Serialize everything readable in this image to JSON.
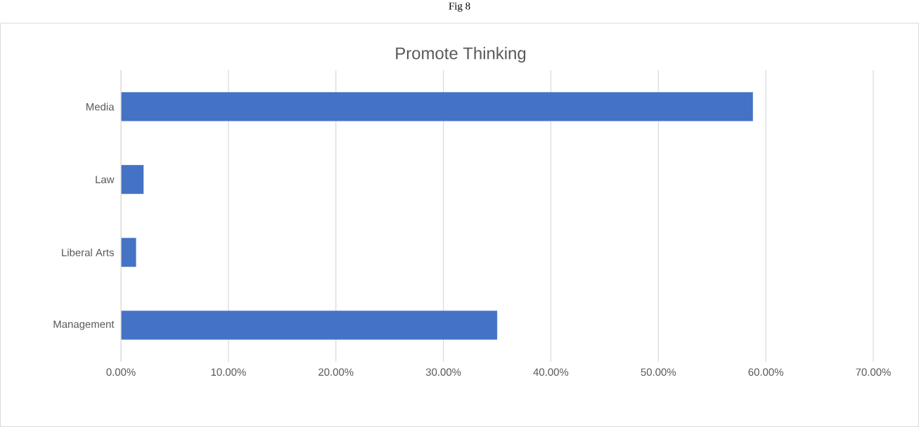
{
  "chart_data": {
    "type": "bar",
    "orientation": "horizontal",
    "title": "Promote Thinking",
    "annotations": [
      "Fig 8"
    ],
    "categories": [
      "Media",
      "Law",
      "Liberal Arts",
      "Management"
    ],
    "values": [
      58.8,
      2.1,
      1.4,
      35.0
    ],
    "color": "#4472c4",
    "xlim": [
      0,
      70
    ],
    "xticks": [
      {
        "value": 0,
        "label": "0.00%"
      },
      {
        "value": 10,
        "label": "10.00%"
      },
      {
        "value": 20,
        "label": "20.00%"
      },
      {
        "value": 30,
        "label": "30.00%"
      },
      {
        "value": 40,
        "label": "40.00%"
      },
      {
        "value": 50,
        "label": "50.00%"
      },
      {
        "value": 60,
        "label": "60.00%"
      },
      {
        "value": 70,
        "label": "70.00%"
      }
    ],
    "grid": "x"
  }
}
